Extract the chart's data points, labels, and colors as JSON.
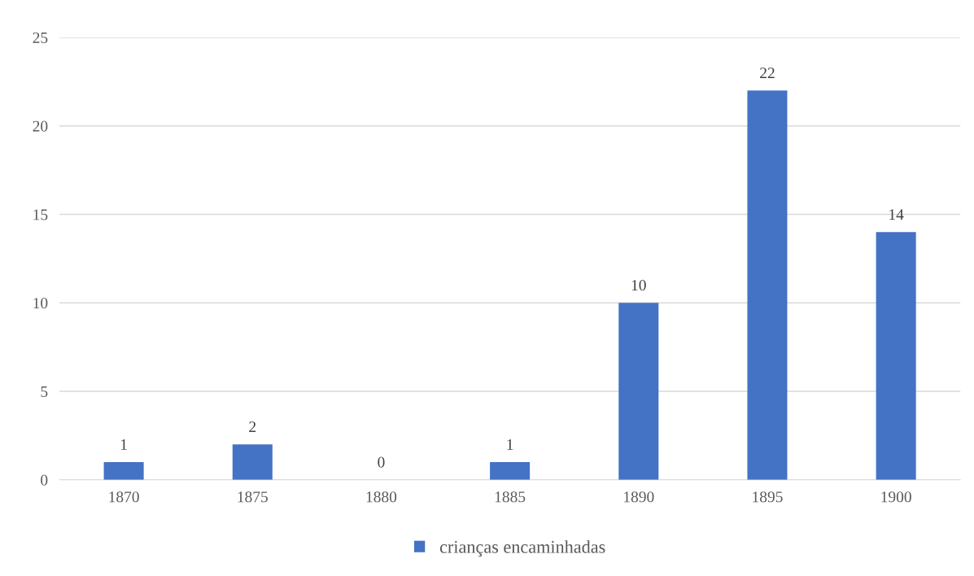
{
  "chart_data": {
    "type": "bar",
    "categories": [
      "1870",
      "1875",
      "1880",
      "1885",
      "1890",
      "1895",
      "1900"
    ],
    "series": [
      {
        "name": "crianças encaminhadas",
        "color": "#4472c4",
        "values": [
          1,
          2,
          0,
          1,
          10,
          22,
          14
        ]
      }
    ],
    "ylim": [
      0,
      25
    ],
    "yticks": [
      0,
      5,
      10,
      15,
      20,
      25
    ],
    "grid": "y",
    "legend": "bottom",
    "data_labels": true
  }
}
